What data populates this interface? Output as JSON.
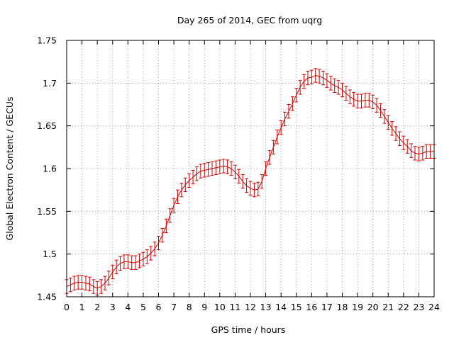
{
  "chart_data": {
    "type": "line",
    "title": "Day 265 of 2014, GEC from uqrg",
    "xlabel": "GPS time / hours",
    "ylabel": "Global Electron Content / GECUs",
    "xlim": [
      0,
      24
    ],
    "ylim": [
      1.45,
      1.75
    ],
    "x_ticks": [
      "0",
      "1",
      "2",
      "3",
      "4",
      "5",
      "6",
      "7",
      "8",
      "9",
      "10",
      "11",
      "12",
      "13",
      "14",
      "15",
      "16",
      "17",
      "18",
      "19",
      "20",
      "21",
      "22",
      "23",
      "24"
    ],
    "y_ticks": [
      "1.45",
      "1.5",
      "1.55",
      "1.6",
      "1.65",
      "1.7",
      "1.75"
    ],
    "grid": true,
    "series": [
      {
        "name": "GEC",
        "color": "#cc0000",
        "error": 0.008,
        "x": [
          0,
          0.25,
          0.5,
          0.75,
          1,
          1.25,
          1.5,
          1.75,
          2,
          2.25,
          2.5,
          2.75,
          3,
          3.25,
          3.5,
          3.75,
          4,
          4.25,
          4.5,
          4.75,
          5,
          5.25,
          5.5,
          5.75,
          6,
          6.25,
          6.5,
          6.75,
          7,
          7.25,
          7.5,
          7.75,
          8,
          8.25,
          8.5,
          8.75,
          9,
          9.25,
          9.5,
          9.75,
          10,
          10.25,
          10.5,
          10.75,
          11,
          11.25,
          11.5,
          11.75,
          12,
          12.25,
          12.5,
          12.75,
          13,
          13.25,
          13.5,
          13.75,
          14,
          14.25,
          14.5,
          14.75,
          15,
          15.25,
          15.5,
          15.75,
          16,
          16.25,
          16.5,
          16.75,
          17,
          17.25,
          17.5,
          17.75,
          18,
          18.25,
          18.5,
          18.75,
          19,
          19.25,
          19.5,
          19.75,
          20,
          20.25,
          20.5,
          20.75,
          21,
          21.25,
          21.5,
          21.75,
          22,
          22.25,
          22.5,
          22.75,
          23,
          23.25,
          23.5,
          23.75,
          24
        ],
        "values": [
          1.462,
          1.464,
          1.466,
          1.467,
          1.467,
          1.466,
          1.465,
          1.462,
          1.46,
          1.462,
          1.466,
          1.472,
          1.479,
          1.485,
          1.489,
          1.491,
          1.491,
          1.49,
          1.49,
          1.492,
          1.494,
          1.497,
          1.501,
          1.506,
          1.513,
          1.522,
          1.533,
          1.545,
          1.557,
          1.567,
          1.575,
          1.581,
          1.586,
          1.59,
          1.594,
          1.597,
          1.598,
          1.599,
          1.6,
          1.601,
          1.602,
          1.603,
          1.602,
          1.6,
          1.596,
          1.591,
          1.585,
          1.58,
          1.577,
          1.575,
          1.576,
          1.585,
          1.6,
          1.613,
          1.625,
          1.637,
          1.648,
          1.658,
          1.667,
          1.676,
          1.686,
          1.695,
          1.702,
          1.706,
          1.707,
          1.709,
          1.708,
          1.706,
          1.703,
          1.7,
          1.697,
          1.695,
          1.692,
          1.688,
          1.684,
          1.681,
          1.679,
          1.679,
          1.68,
          1.68,
          1.678,
          1.674,
          1.668,
          1.661,
          1.654,
          1.647,
          1.641,
          1.635,
          1.63,
          1.626,
          1.621,
          1.618,
          1.617,
          1.618,
          1.62,
          1.62,
          1.62
        ]
      }
    ]
  }
}
